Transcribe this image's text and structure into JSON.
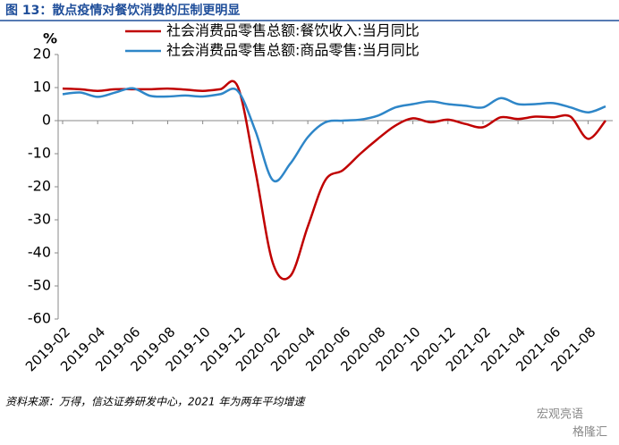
{
  "chart_data": {
    "type": "line",
    "title": "图 13：散点疫情对餐饮消费的压制更明显",
    "y_label": "%",
    "categories": [
      "2019-02",
      null,
      "2019-04",
      null,
      "2019-06",
      null,
      "2019-08",
      null,
      "2019-10",
      null,
      "2019-12",
      null,
      "2020-02",
      null,
      "2020-04",
      null,
      "2020-06",
      null,
      "2020-08",
      null,
      "2020-10",
      null,
      "2020-12",
      null,
      "2021-02",
      null,
      "2021-04",
      null,
      "2021-06",
      null,
      "2021-08",
      null
    ],
    "series": [
      {
        "name": "社会消费品零售总额:餐饮收入:当月同比",
        "color": "#c00000",
        "values": [
          9.7,
          9.5,
          9,
          9.5,
          9.5,
          9.5,
          9.7,
          9.4,
          9,
          9.5,
          10.3,
          -15,
          -43,
          -47,
          -32,
          -18,
          -15,
          -10,
          -5.5,
          -1.5,
          0.7,
          -0.5,
          0.3,
          -1,
          -2,
          1,
          0.5,
          1.2,
          1,
          1.2,
          -5.5,
          0
        ]
      },
      {
        "name": "社会消费品零售总额:商品零售:当月同比",
        "color": "#2e86c8",
        "values": [
          8,
          8.5,
          7.2,
          8.5,
          9.8,
          7.5,
          7.3,
          7.6,
          7.3,
          8,
          9,
          -3,
          -18,
          -13,
          -5,
          -0.5,
          0,
          0.3,
          1.5,
          4,
          5,
          5.8,
          5,
          4.5,
          4,
          6.8,
          5,
          5,
          5.3,
          4,
          2.5,
          4.3
        ]
      }
    ],
    "ylim": [
      -60,
      20
    ],
    "yticks": [
      -60,
      -50,
      -40,
      -30,
      -20,
      -10,
      0,
      10,
      20
    ],
    "legend": "top",
    "source": "资料来源：万得，信达证券研发中心，2021 年为两年平均增速",
    "watermark": [
      "宏观亮语",
      "格隆汇"
    ]
  }
}
